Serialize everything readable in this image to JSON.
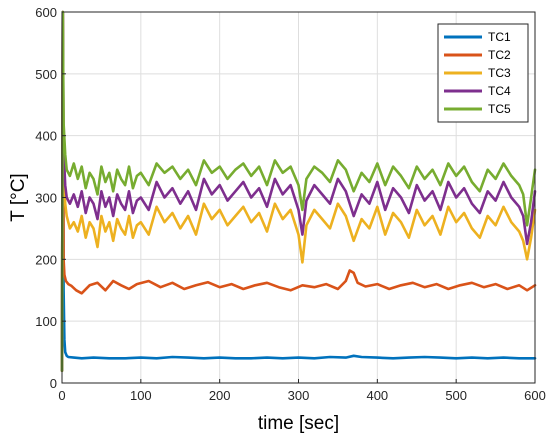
{
  "chart_data": {
    "type": "line",
    "title": "",
    "xlabel": "time [sec]",
    "ylabel": "T [°C]",
    "xlim": [
      0,
      600
    ],
    "ylim": [
      0,
      600
    ],
    "xticks": [
      0,
      100,
      200,
      300,
      400,
      500,
      600
    ],
    "yticks": [
      0,
      100,
      200,
      300,
      400,
      500,
      600
    ],
    "grid": true,
    "legend_position": "top-right",
    "series": [
      {
        "name": "TC1",
        "color": "#0072BD",
        "x": [
          0,
          1,
          2,
          3,
          4,
          6,
          8,
          15,
          25,
          40,
          60,
          80,
          100,
          120,
          140,
          160,
          180,
          200,
          220,
          240,
          260,
          280,
          300,
          320,
          340,
          360,
          370,
          380,
          400,
          420,
          440,
          460,
          480,
          500,
          520,
          540,
          560,
          580,
          600
        ],
        "y": [
          22,
          600,
          150,
          70,
          50,
          44,
          42,
          41,
          40,
          41,
          40,
          40,
          41,
          40,
          42,
          41,
          40,
          41,
          40,
          40,
          41,
          40,
          41,
          40,
          42,
          41,
          44,
          42,
          41,
          40,
          41,
          42,
          41,
          40,
          41,
          40,
          41,
          40,
          40
        ]
      },
      {
        "name": "TC2",
        "color": "#D95319",
        "x": [
          0,
          1,
          2,
          3,
          5,
          8,
          12,
          18,
          25,
          35,
          45,
          55,
          65,
          75,
          85,
          95,
          110,
          125,
          140,
          155,
          170,
          185,
          200,
          215,
          230,
          245,
          260,
          275,
          290,
          305,
          320,
          335,
          350,
          360,
          365,
          370,
          375,
          385,
          400,
          415,
          430,
          445,
          460,
          475,
          490,
          505,
          520,
          535,
          550,
          565,
          580,
          590,
          600
        ],
        "y": [
          20,
          600,
          200,
          175,
          165,
          160,
          157,
          150,
          145,
          158,
          162,
          150,
          165,
          158,
          152,
          160,
          165,
          155,
          162,
          152,
          158,
          163,
          155,
          160,
          152,
          158,
          162,
          155,
          150,
          158,
          155,
          160,
          152,
          165,
          182,
          178,
          162,
          156,
          160,
          152,
          158,
          162,
          155,
          160,
          152,
          158,
          162,
          155,
          160,
          152,
          158,
          150,
          158
        ]
      },
      {
        "name": "TC3",
        "color": "#EDB120",
        "x": [
          0,
          1,
          2,
          4,
          6,
          10,
          15,
          20,
          25,
          30,
          35,
          40,
          45,
          50,
          55,
          60,
          65,
          70,
          75,
          80,
          85,
          90,
          95,
          100,
          110,
          120,
          130,
          140,
          150,
          160,
          170,
          180,
          190,
          200,
          210,
          220,
          230,
          240,
          250,
          260,
          270,
          280,
          290,
          300,
          305,
          310,
          320,
          330,
          340,
          350,
          360,
          370,
          380,
          390,
          400,
          410,
          420,
          430,
          440,
          450,
          460,
          470,
          480,
          490,
          500,
          510,
          520,
          530,
          540,
          550,
          560,
          570,
          580,
          585,
          590,
          595,
          600
        ],
        "y": [
          20,
          600,
          350,
          290,
          270,
          250,
          260,
          245,
          270,
          235,
          260,
          250,
          220,
          270,
          245,
          260,
          230,
          265,
          250,
          240,
          270,
          235,
          255,
          260,
          240,
          285,
          260,
          275,
          250,
          270,
          240,
          290,
          265,
          280,
          255,
          270,
          285,
          260,
          275,
          245,
          290,
          265,
          280,
          240,
          195,
          255,
          280,
          265,
          250,
          290,
          270,
          230,
          265,
          250,
          285,
          240,
          275,
          260,
          235,
          280,
          255,
          270,
          240,
          285,
          260,
          275,
          250,
          235,
          270,
          255,
          285,
          260,
          245,
          230,
          200,
          235,
          280
        ]
      },
      {
        "name": "TC4",
        "color": "#7E2F8E",
        "x": [
          0,
          1,
          2,
          4,
          6,
          10,
          15,
          20,
          25,
          30,
          35,
          40,
          45,
          50,
          55,
          60,
          65,
          70,
          75,
          80,
          85,
          90,
          95,
          100,
          110,
          120,
          130,
          140,
          150,
          160,
          170,
          180,
          190,
          200,
          210,
          220,
          230,
          240,
          250,
          260,
          270,
          280,
          290,
          300,
          305,
          310,
          320,
          330,
          340,
          350,
          360,
          370,
          380,
          390,
          400,
          410,
          420,
          430,
          440,
          450,
          460,
          470,
          480,
          490,
          500,
          510,
          520,
          530,
          540,
          550,
          560,
          570,
          580,
          585,
          590,
          595,
          600
        ],
        "y": [
          20,
          600,
          380,
          320,
          300,
          290,
          305,
          285,
          310,
          275,
          300,
          290,
          265,
          310,
          285,
          300,
          270,
          305,
          290,
          280,
          310,
          275,
          295,
          300,
          280,
          325,
          300,
          315,
          290,
          310,
          280,
          330,
          305,
          320,
          295,
          310,
          325,
          300,
          315,
          285,
          330,
          305,
          320,
          280,
          240,
          295,
          320,
          305,
          290,
          330,
          310,
          270,
          305,
          290,
          325,
          280,
          315,
          300,
          275,
          320,
          295,
          310,
          280,
          325,
          300,
          315,
          290,
          275,
          310,
          295,
          325,
          300,
          285,
          270,
          225,
          260,
          310
        ]
      },
      {
        "name": "TC5",
        "color": "#77AC30",
        "x": [
          0,
          1,
          2,
          4,
          6,
          10,
          15,
          20,
          25,
          30,
          35,
          40,
          45,
          50,
          55,
          60,
          65,
          70,
          75,
          80,
          85,
          90,
          95,
          100,
          110,
          120,
          130,
          140,
          150,
          160,
          170,
          180,
          190,
          200,
          210,
          220,
          230,
          240,
          250,
          260,
          270,
          280,
          290,
          300,
          305,
          310,
          320,
          330,
          340,
          350,
          360,
          370,
          380,
          390,
          400,
          410,
          420,
          430,
          440,
          450,
          460,
          470,
          480,
          490,
          500,
          510,
          520,
          530,
          540,
          550,
          560,
          570,
          580,
          585,
          590,
          595,
          600
        ],
        "y": [
          20,
          600,
          420,
          370,
          345,
          335,
          355,
          330,
          350,
          315,
          340,
          330,
          305,
          350,
          325,
          340,
          310,
          345,
          330,
          320,
          350,
          315,
          335,
          340,
          320,
          355,
          340,
          350,
          330,
          345,
          320,
          360,
          340,
          350,
          330,
          345,
          355,
          335,
          350,
          320,
          360,
          340,
          350,
          320,
          280,
          330,
          350,
          340,
          325,
          360,
          345,
          310,
          340,
          325,
          355,
          320,
          350,
          335,
          315,
          350,
          330,
          345,
          320,
          355,
          335,
          350,
          325,
          310,
          345,
          330,
          355,
          335,
          320,
          305,
          255,
          300,
          345
        ]
      }
    ]
  }
}
